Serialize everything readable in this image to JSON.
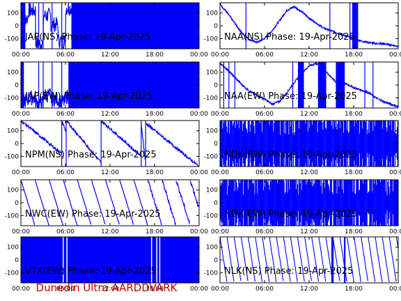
{
  "footer": "Dunedin Ultra AARDDVARK",
  "colors": {
    "trace": "#0000ff",
    "footer": "#c00000",
    "axis": "#000000"
  },
  "chart_data": [
    {
      "type": "line",
      "title": "JAP(NS) Phase: 19-Apr-2025",
      "xticks": [
        "00:00",
        "06:00",
        "12:00",
        "18:00",
        "00:00"
      ],
      "yticks": [
        "100",
        "0",
        "-100"
      ],
      "xlim_hours": [
        0,
        24
      ],
      "ylim": [
        -180,
        180
      ],
      "pattern": "dense-late",
      "series": [
        {
          "values": [
            60,
            120,
            -140,
            80,
            10,
            -120,
            140,
            -90,
            30
          ]
        }
      ]
    },
    {
      "type": "line",
      "title": "NAA(NS) Phase: 19-Apr-2025",
      "xticks": [
        "00:00",
        "06:00",
        "12:00",
        "18:00",
        "00:00"
      ],
      "yticks": [
        "100",
        "0",
        "-100"
      ],
      "xlim_hours": [
        0,
        24
      ],
      "ylim": [
        -180,
        180
      ],
      "pattern": "curve",
      "series": [
        {
          "values": [
            170,
            100,
            20,
            -60,
            -110,
            -130,
            -100,
            -40,
            40,
            120,
            150,
            110,
            60,
            20,
            -20,
            -40,
            -60,
            -80,
            -100,
            -120,
            -130,
            -140,
            -140,
            -150,
            -160
          ]
        }
      ]
    },
    {
      "type": "line",
      "title": "JAP(EW) Phase: 19-Apr-2025",
      "xticks": [
        "00:00",
        "06:00",
        "12:00",
        "18:00",
        "00:00"
      ],
      "yticks": [
        "100",
        "0",
        "-100"
      ],
      "xlim_hours": [
        0,
        24
      ],
      "ylim": [
        -180,
        180
      ],
      "pattern": "dense-late",
      "series": [
        {
          "values": [
            -120,
            -100,
            -140,
            -80,
            -110,
            -130,
            -90,
            -120
          ]
        }
      ]
    },
    {
      "type": "line",
      "title": "NAA(EW) Phase: 19-Apr-2025",
      "xticks": [
        "00:00",
        "06:00",
        "12:00",
        "18:00",
        "00:00"
      ],
      "yticks": [
        "100",
        "0",
        "-100"
      ],
      "xlim_hours": [
        0,
        24
      ],
      "ylim": [
        -180,
        180
      ],
      "pattern": "curve",
      "series": [
        {
          "values": [
            170,
            120,
            60,
            0,
            -50,
            -80,
            -110,
            -150,
            -130,
            -60,
            20,
            90,
            150,
            170,
            120,
            60,
            0,
            10,
            -20,
            -40,
            -60,
            -100,
            -130,
            -150,
            -170
          ]
        }
      ]
    },
    {
      "type": "line",
      "title": "NPM(NS) Phase: 19-Apr-2025",
      "xticks": [
        "00:00",
        "06:00",
        "12:00",
        "18:00",
        "00:00"
      ],
      "yticks": [
        "100",
        "0",
        "-100"
      ],
      "xlim_hours": [
        0,
        24
      ],
      "ylim": [
        -180,
        180
      ],
      "pattern": "sawtooth",
      "series": [
        {
          "values": [
            180,
            -80,
            180,
            -120,
            180,
            -150,
            180,
            -100,
            180,
            -150,
            -180
          ]
        }
      ]
    },
    {
      "type": "line",
      "title": "NDK(EW) Phase: 19-Apr-2025",
      "xticks": [
        "00:00",
        "06:00",
        "12:00",
        "18:00",
        "00:00"
      ],
      "yticks": [
        "100",
        "0",
        "-100"
      ],
      "xlim_hours": [
        0,
        24
      ],
      "ylim": [
        -180,
        180
      ],
      "pattern": "noise",
      "series": [
        {
          "values": [
            0
          ]
        }
      ]
    },
    {
      "type": "line",
      "title": "NWC(EW) Phase: 19-Apr-2025",
      "xticks": [
        "00:00",
        "06:00",
        "12:00",
        "18:00",
        "00:00"
      ],
      "yticks": [
        "100",
        "0",
        "-100"
      ],
      "xlim_hours": [
        0,
        24
      ],
      "ylim": [
        -180,
        180
      ],
      "pattern": "sawtooth-regular",
      "series": [
        {
          "values": [
            180,
            -180
          ]
        }
      ]
    },
    {
      "type": "line",
      "title": "NDK(EW) Phase: 19-Apr-2025",
      "xticks": [
        "00:00",
        "06:00",
        "12:00",
        "18:00",
        "00:00"
      ],
      "yticks": [
        "100",
        "0",
        "-100"
      ],
      "xlim_hours": [
        0,
        24
      ],
      "ylim": [
        -180,
        180
      ],
      "pattern": "noise",
      "series": [
        {
          "values": [
            0
          ]
        }
      ]
    },
    {
      "type": "line",
      "title": "VTX(EW) Phase: 19-Apr-2025",
      "xticks": [
        "00:00",
        "06:00",
        "12:00",
        "18:00",
        "00:00"
      ],
      "yticks": [
        "100",
        "0",
        "-100"
      ],
      "xlim_hours": [
        0,
        24
      ],
      "ylim": [
        -180,
        180
      ],
      "pattern": "solid",
      "series": [
        {
          "values": [
            0
          ]
        }
      ]
    },
    {
      "type": "line",
      "title": "NLK(NS) Phase: 19-Apr-2025",
      "xticks": [
        "00:00",
        "06:00",
        "12:00",
        "18:00",
        "00:00"
      ],
      "yticks": [
        "100",
        "0",
        "-100"
      ],
      "xlim_hours": [
        0,
        24
      ],
      "ylim": [
        -180,
        180
      ],
      "pattern": "sawtooth-fast",
      "series": [
        {
          "values": [
            180,
            -180
          ]
        }
      ]
    }
  ]
}
